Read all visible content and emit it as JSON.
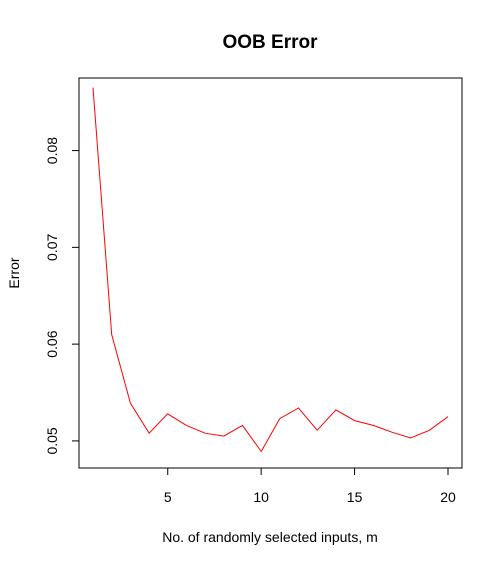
{
  "chart_data": {
    "type": "line",
    "title": "OOB Error",
    "xlabel": "No. of randomly selected inputs, m",
    "ylabel": "Error",
    "xlim": [
      0.25,
      20.75
    ],
    "ylim": [
      0.0472,
      0.0875
    ],
    "x_ticks": [
      5,
      10,
      15,
      20
    ],
    "y_ticks": [
      0.05,
      0.06,
      0.07,
      0.08
    ],
    "x_tick_labels": [
      "5",
      "10",
      "15",
      "20"
    ],
    "y_tick_labels": [
      "0.05",
      "0.06",
      "0.07",
      "0.08"
    ],
    "grid": false,
    "line_color": "#FF0000",
    "x": [
      1,
      2,
      3,
      4,
      5,
      6,
      7,
      8,
      9,
      10,
      11,
      12,
      13,
      14,
      15,
      16,
      17,
      18,
      19,
      20
    ],
    "y": [
      0.0865,
      0.061,
      0.0539,
      0.0508,
      0.0528,
      0.0516,
      0.0508,
      0.0505,
      0.0516,
      0.0489,
      0.0523,
      0.0534,
      0.0511,
      0.0532,
      0.0521,
      0.0516,
      0.0509,
      0.0503,
      0.0511,
      0.0525
    ]
  }
}
